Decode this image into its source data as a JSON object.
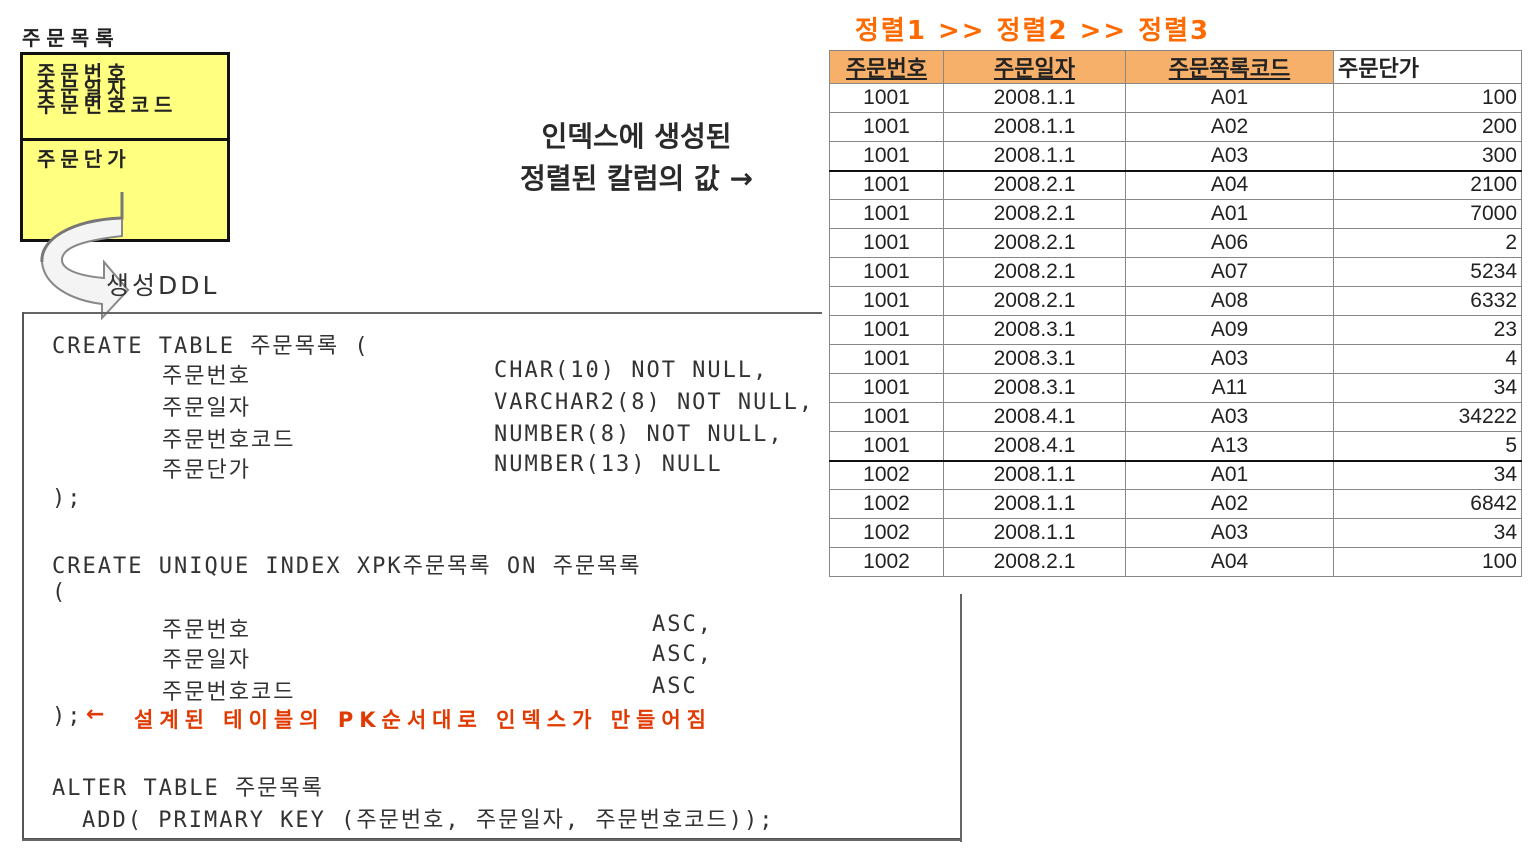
{
  "entity": {
    "title": "주문목록",
    "pk_attributes": [
      "주문번호",
      "주문일자",
      "주문번호코드"
    ],
    "attributes": [
      "주문단가"
    ],
    "fill_color": "#ffff80"
  },
  "ddl_label": "생성DDL",
  "note": {
    "line1": "인덱스에 생성된",
    "line2": "정렬된 칼럼의 값 →"
  },
  "sort_caption": "정렬1 >> 정렬2 >> 정렬3",
  "code": {
    "create_table": "CREATE TABLE 주문목록 (",
    "columns": [
      {
        "name": "주문번호",
        "type": "CHAR(10) NOT NULL,"
      },
      {
        "name": "주문일자",
        "type": "VARCHAR2(8) NOT NULL,"
      },
      {
        "name": "주문번호코드",
        "type": "NUMBER(8) NOT NULL,"
      },
      {
        "name": "주문단가",
        "type": "NUMBER(13) NULL"
      }
    ],
    "close_table": ");",
    "create_index": "CREATE UNIQUE INDEX XPK주문목록 ON 주문목록",
    "open_paren": "(",
    "index_columns": [
      {
        "name": "주문번호",
        "order": "ASC,"
      },
      {
        "name": "주문일자",
        "order": "ASC,"
      },
      {
        "name": "주문번호코드",
        "order": "ASC"
      }
    ],
    "close_index": ");",
    "index_note": "설계된 테이블의 PK순서대로 인덱스가 만들어짐",
    "alter_table": "ALTER TABLE 주문목록",
    "add_pk": "ADD( PRIMARY KEY (주문번호, 주문일자, 주문번호코드));"
  },
  "table": {
    "headers": [
      "주문번호",
      "주문일자",
      "주문쪽록코드",
      "주문단가"
    ],
    "rows": [
      [
        "1001",
        "2008.1.1",
        "A01",
        "100"
      ],
      [
        "1001",
        "2008.1.1",
        "A02",
        "200"
      ],
      [
        "1001",
        "2008.1.1",
        "A03",
        "300"
      ],
      [
        "1001",
        "2008.2.1",
        "A04",
        "2100"
      ],
      [
        "1001",
        "2008.2.1",
        "A01",
        "7000"
      ],
      [
        "1001",
        "2008.2.1",
        "A06",
        "2"
      ],
      [
        "1001",
        "2008.2.1",
        "A07",
        "5234"
      ],
      [
        "1001",
        "2008.2.1",
        "A08",
        "6332"
      ],
      [
        "1001",
        "2008.3.1",
        "A09",
        "23"
      ],
      [
        "1001",
        "2008.3.1",
        "A03",
        "4"
      ],
      [
        "1001",
        "2008.3.1",
        "A11",
        "34"
      ],
      [
        "1001",
        "2008.4.1",
        "A03",
        "34222"
      ],
      [
        "1001",
        "2008.4.1",
        "A13",
        "5"
      ],
      [
        "1002",
        "2008.1.1",
        "A01",
        "34"
      ],
      [
        "1002",
        "2008.1.1",
        "A02",
        "6842"
      ],
      [
        "1002",
        "2008.1.1",
        "A03",
        "34"
      ],
      [
        "1002",
        "2008.2.1",
        "A04",
        "100"
      ]
    ],
    "group_starts": [
      3,
      13
    ],
    "sorted_header_color": "#f6b06a"
  }
}
